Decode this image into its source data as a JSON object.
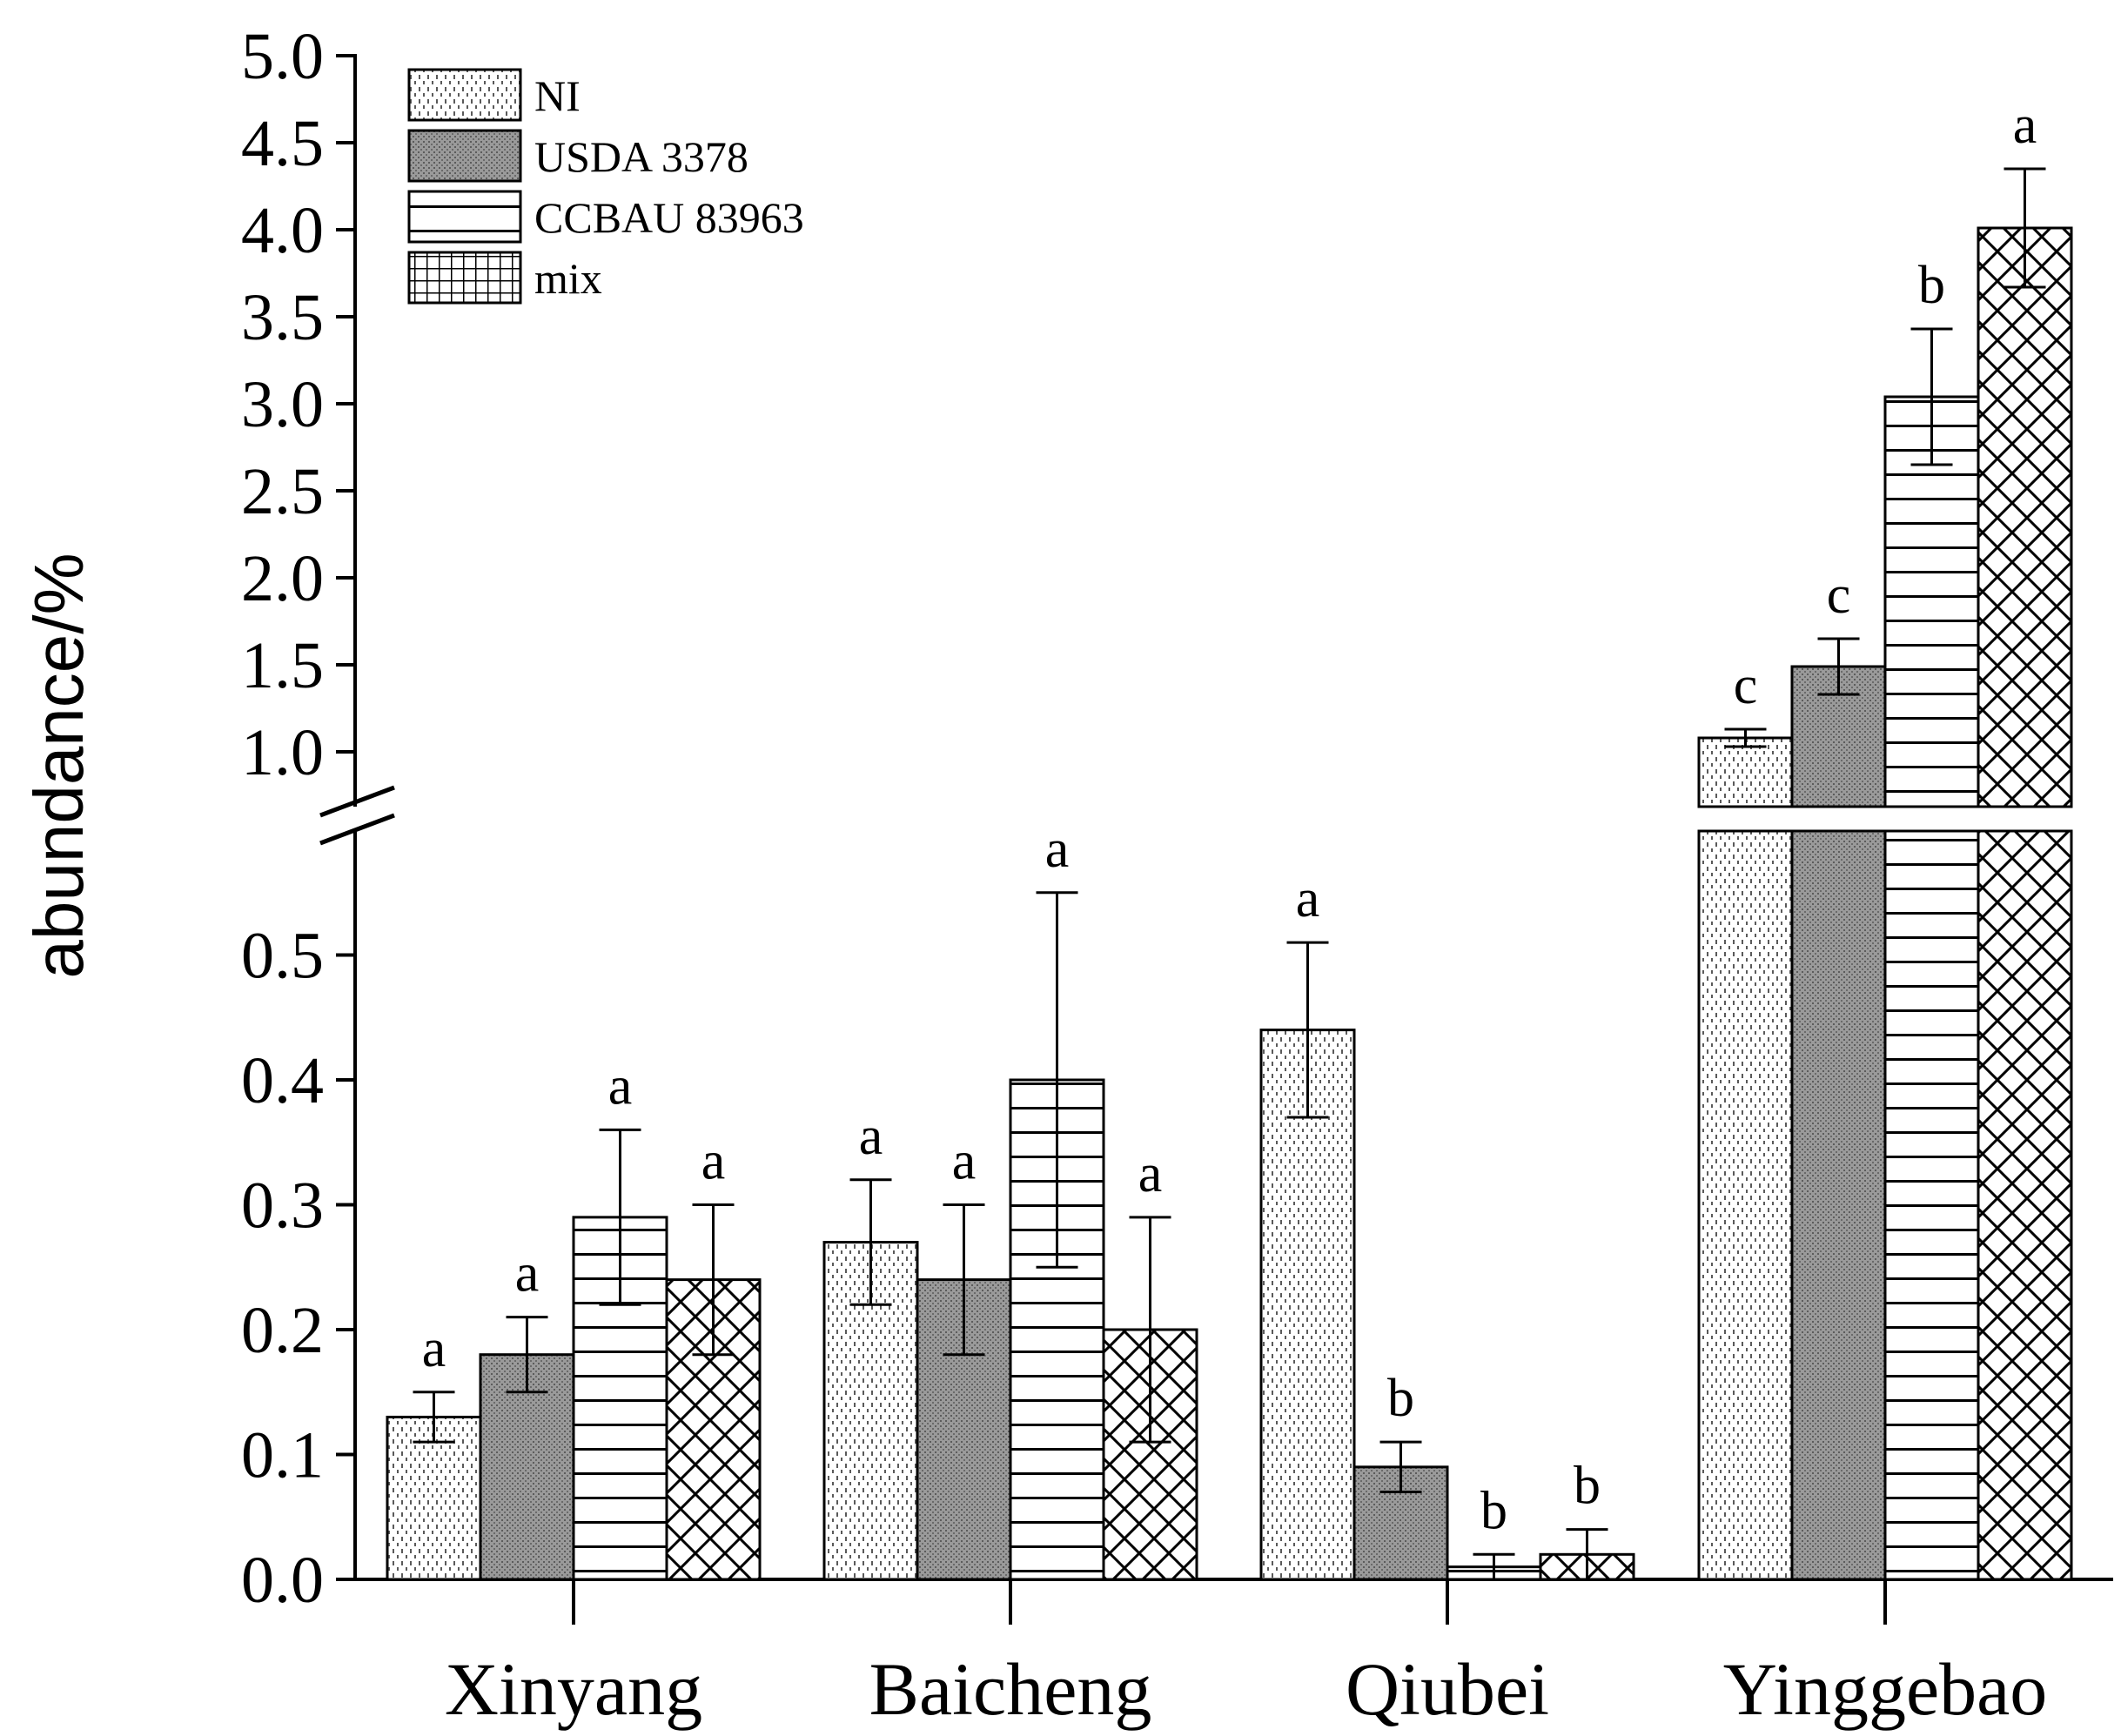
{
  "chart_data": {
    "type": "bar",
    "title": "",
    "xlabel": "",
    "ylabel": "abundance/%",
    "axis_break": {
      "lower_range": [
        0,
        0.6
      ],
      "upper_range": [
        0.75,
        5.0
      ]
    },
    "y_ticks_lower": [
      "0.0",
      "0.1",
      "0.2",
      "0.3",
      "0.4",
      "0.5"
    ],
    "y_ticks_upper": [
      "1.0",
      "1.5",
      "2.0",
      "2.5",
      "3.0",
      "3.5",
      "4.0",
      "4.5",
      "5.0"
    ],
    "categories": [
      "Xinyang",
      "Baicheng",
      "Qiubei",
      "Yinggebao"
    ],
    "legend_position": "top-left",
    "series": [
      {
        "name": "NI",
        "pattern": "dots",
        "values": [
          0.13,
          0.27,
          0.44,
          1.08
        ],
        "errors": [
          0.02,
          0.05,
          0.07,
          0.05
        ],
        "significance": [
          "a",
          "a",
          "a",
          "c"
        ]
      },
      {
        "name": "USDA 3378",
        "pattern": "dense-gray",
        "values": [
          0.18,
          0.24,
          0.09,
          1.49
        ],
        "errors": [
          0.03,
          0.06,
          0.02,
          0.16
        ],
        "significance": [
          "a",
          "a",
          "b",
          "c"
        ]
      },
      {
        "name": "CCBAU 83963",
        "pattern": "horizontal-lines",
        "values": [
          0.29,
          0.4,
          0.01,
          3.04
        ],
        "errors": [
          0.07,
          0.15,
          0.01,
          0.39
        ],
        "significance": [
          "a",
          "a",
          "b",
          "b"
        ]
      },
      {
        "name": "mix",
        "pattern": "crosshatch",
        "values": [
          0.24,
          0.2,
          0.02,
          4.01
        ],
        "errors": [
          0.06,
          0.09,
          0.02,
          0.34
        ],
        "significance": [
          "a",
          "a",
          "b",
          "a"
        ]
      }
    ],
    "colors": {
      "axis": "#000000",
      "bar_outline": "#000000",
      "dense_fill": "#9a9a9a",
      "background": "#ffffff"
    }
  }
}
